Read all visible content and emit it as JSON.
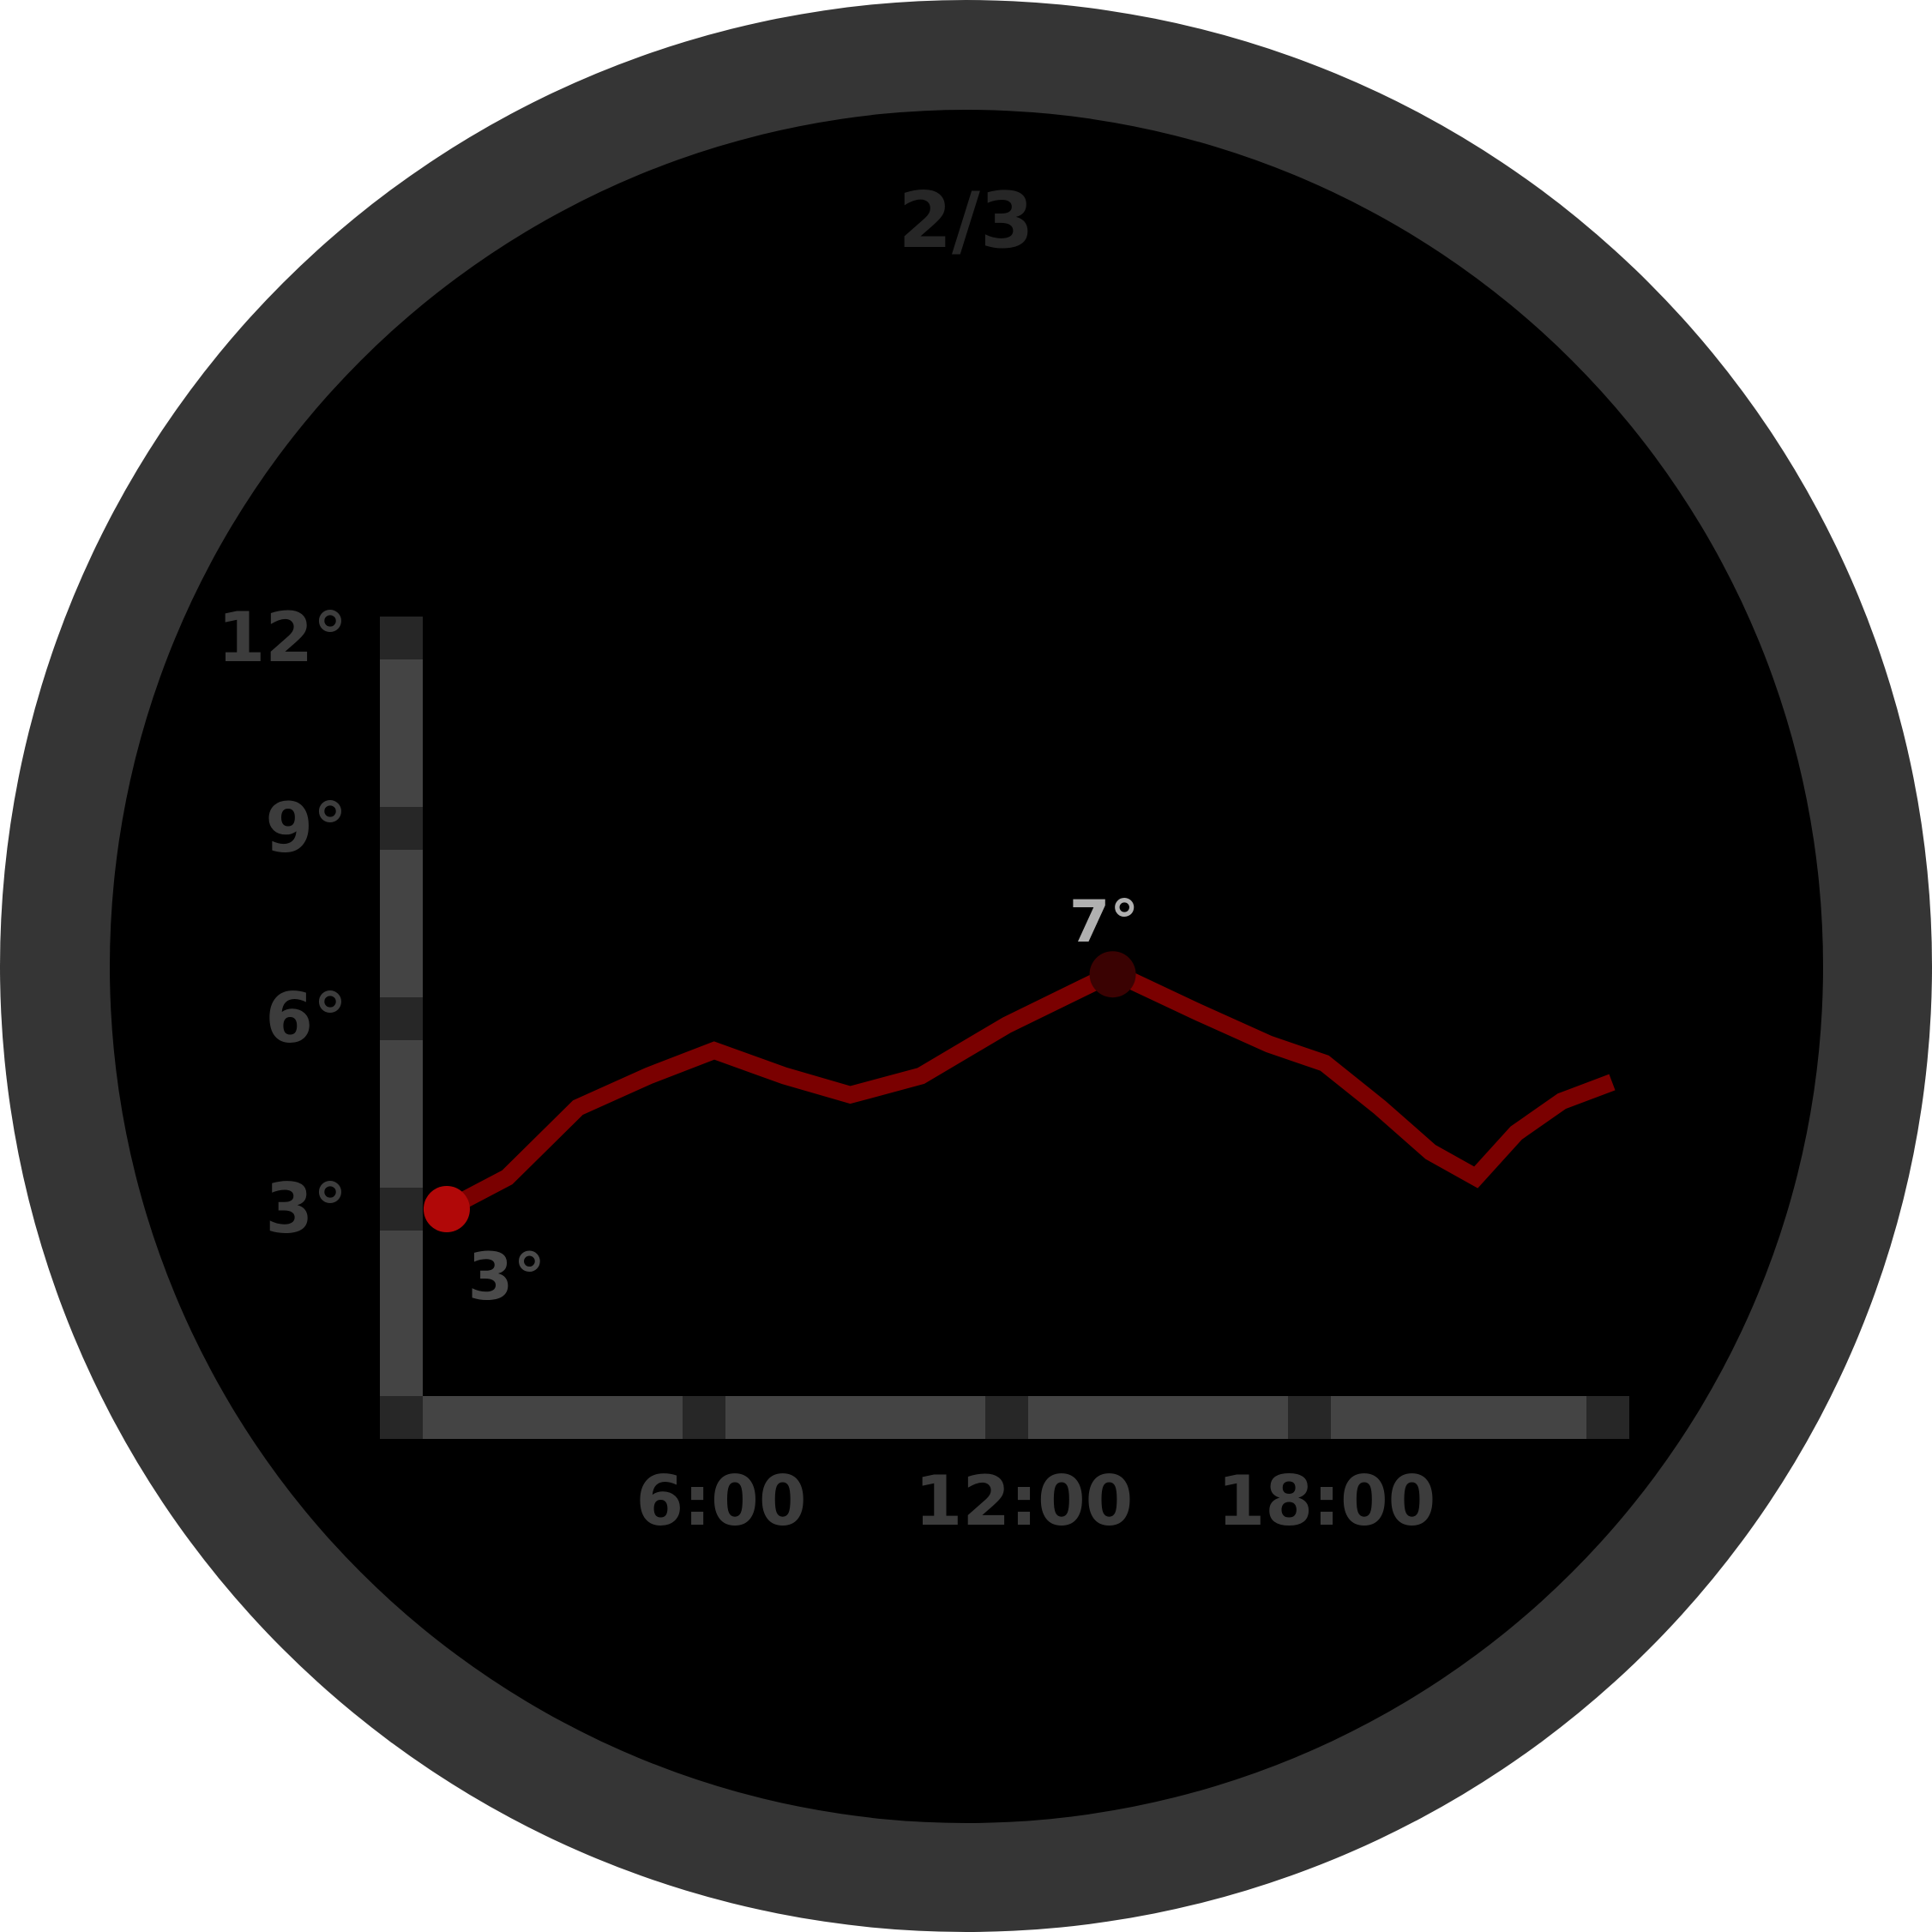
{
  "page_indicator": "2/3",
  "colors": {
    "bezel": "#353535",
    "face": "#000000",
    "axis": "#444444",
    "tick": "#272727",
    "axis_label": "#3c3c3c",
    "line": "#7a0000",
    "current_point": "#b10808",
    "max_point": "#3a0202",
    "max_label": "#b0b0b0",
    "current_label": "#4a4a4a"
  },
  "chart_data": {
    "type": "line",
    "x_unit": "hour",
    "xlim": [
      0,
      24
    ],
    "ylim": [
      0,
      12
    ],
    "x_ticks": [
      0,
      6,
      12,
      18,
      24
    ],
    "x_tick_labels": [
      "",
      "6:00",
      "12:00",
      "18:00",
      ""
    ],
    "y_ticks": [
      12,
      9,
      6,
      3
    ],
    "y_tick_labels": [
      "12°",
      "9°",
      "6°",
      "3°"
    ],
    "grid": false,
    "series": [
      {
        "x": [
          0.9,
          2.1,
          3.5,
          4.9,
          6.2,
          7.6,
          8.9,
          10.3,
          12.0,
          13.8,
          14.2,
          15.8,
          17.2,
          18.3,
          19.4,
          20.4,
          21.3,
          22.1,
          23.0,
          24.0
        ],
        "values": [
          3.0,
          3.5,
          4.6,
          5.1,
          5.5,
          5.1,
          4.8,
          5.1,
          5.9,
          6.6,
          6.7,
          6.1,
          5.6,
          5.3,
          4.6,
          3.9,
          3.5,
          4.2,
          4.7,
          5.0
        ]
      }
    ],
    "current": {
      "x": 0.9,
      "value": 3,
      "label": "3°"
    },
    "max": {
      "x": 14.1,
      "value": 6.7,
      "label": "7°"
    }
  }
}
